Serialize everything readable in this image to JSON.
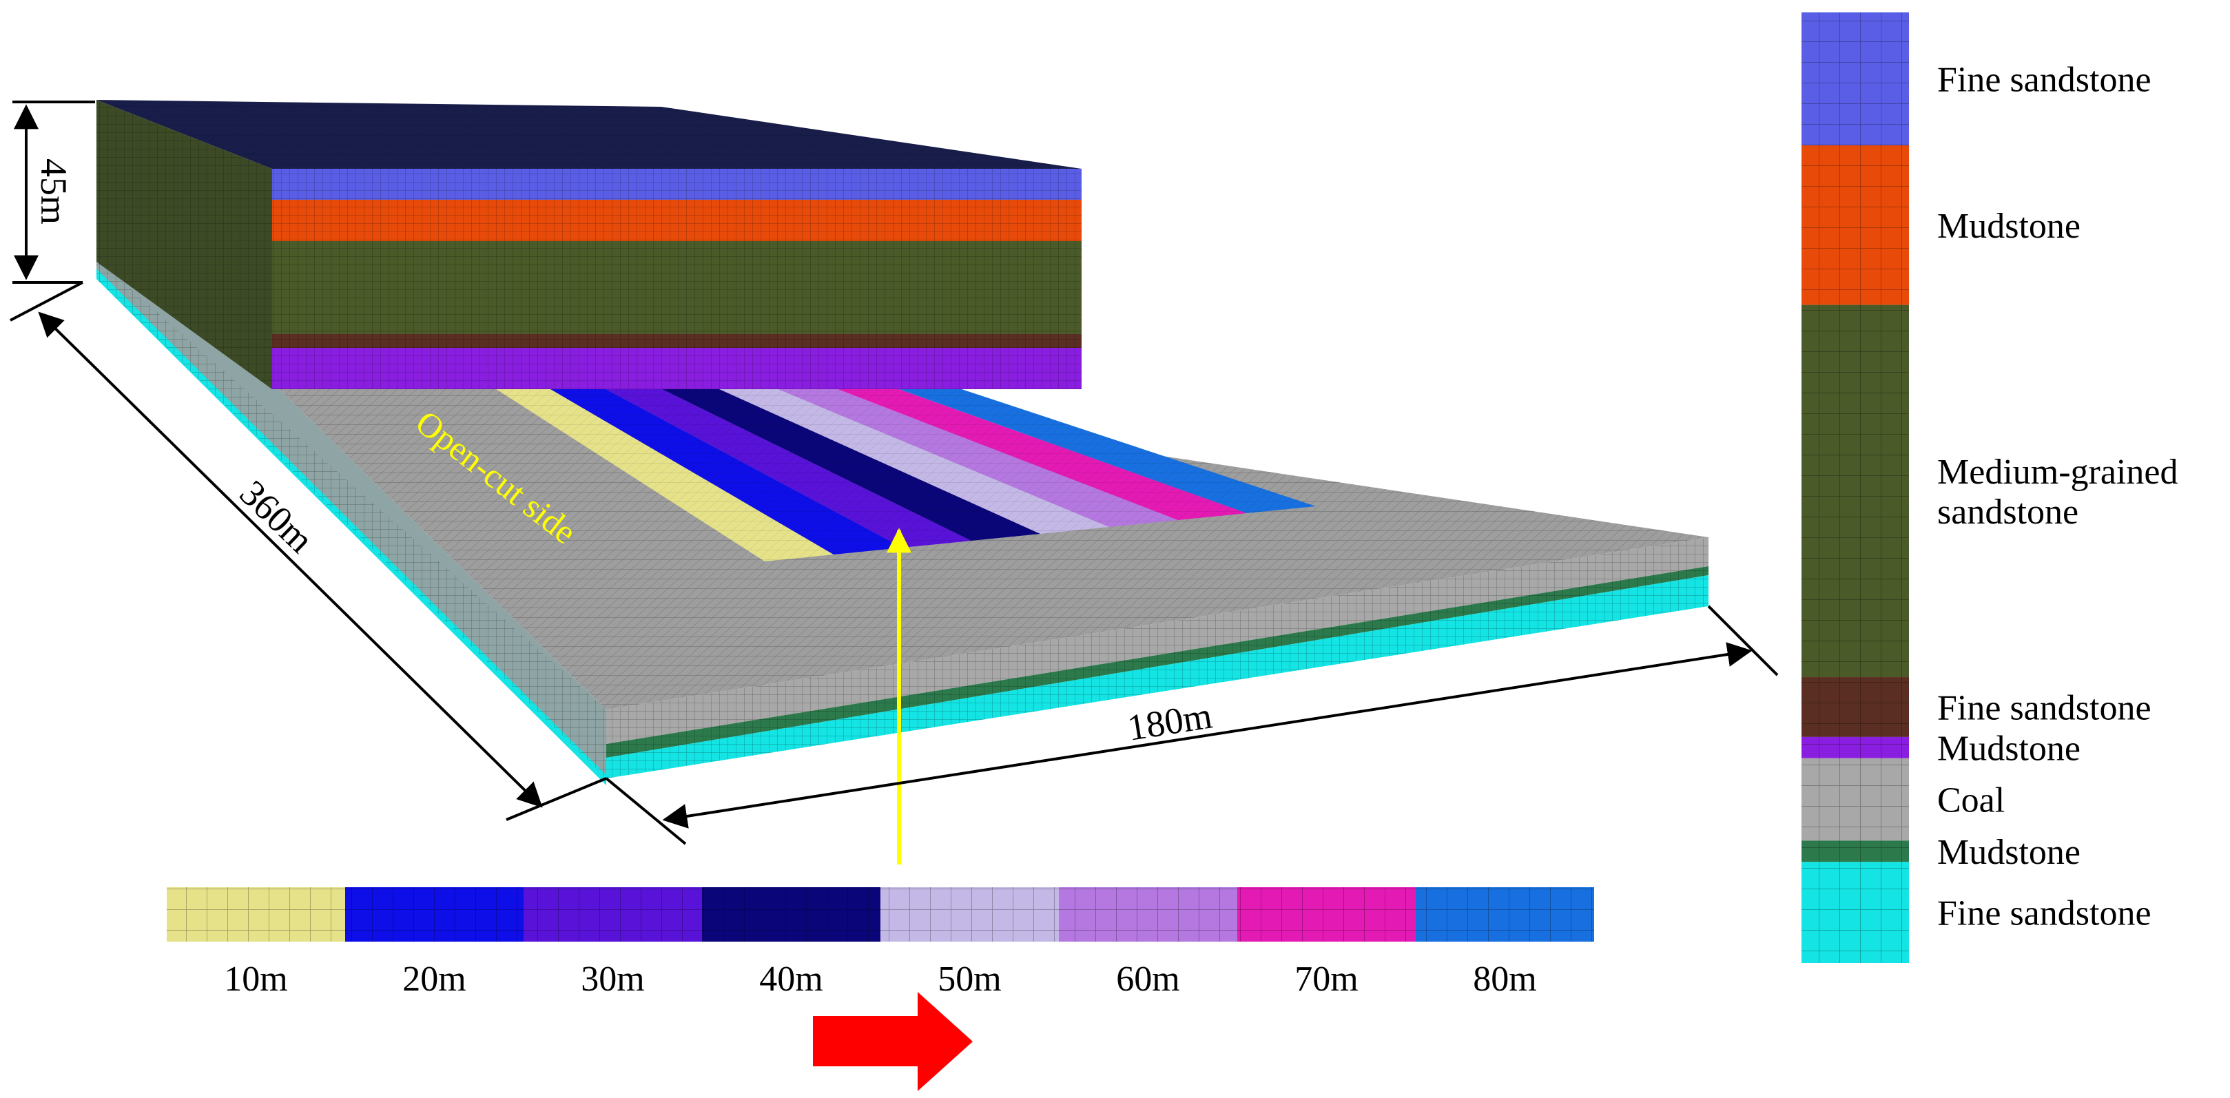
{
  "model": {
    "dims": {
      "height": "45m",
      "length": "360m",
      "width": "180m"
    },
    "open_cut_label": "Open-cut side",
    "upper_block_layers": [
      {
        "color": "#5a5ee6"
      },
      {
        "color": "#e84a0a"
      },
      {
        "color": "#4a5a28"
      },
      {
        "color": "#5a2e22"
      },
      {
        "color": "#8a1ee0"
      }
    ],
    "lower_block_layers": [
      {
        "color": "#a8a8a8"
      },
      {
        "color": "#2c7a4c"
      },
      {
        "color": "#14e4e4"
      }
    ],
    "arrow_color": "#ffff00",
    "label_color": "#ffff00"
  },
  "strip_legend": {
    "items": [
      {
        "label": "10m",
        "color": "#e6e28a"
      },
      {
        "label": "20m",
        "color": "#0e0ee8"
      },
      {
        "label": "30m",
        "color": "#5812d8"
      },
      {
        "label": "40m",
        "color": "#0a067a"
      },
      {
        "label": "50m",
        "color": "#c4b8e6"
      },
      {
        "label": "60m",
        "color": "#b478e0"
      },
      {
        "label": "70m",
        "color": "#e41ab4"
      },
      {
        "label": "80m",
        "color": "#1870e0"
      }
    ],
    "direction_arrow_color": "#ff0000"
  },
  "layer_legend": {
    "items": [
      {
        "label": [
          "Fine sandstone"
        ],
        "color": "#5a5ee6",
        "weight": 1.0
      },
      {
        "label": [
          "Mudstone"
        ],
        "color": "#e84a0a",
        "weight": 1.2
      },
      {
        "label": [
          "Medium-grained",
          "sandstone"
        ],
        "color": "#4a5a28",
        "weight": 2.8
      },
      {
        "label": [
          "Fine sandstone"
        ],
        "color": "#5a2e22",
        "weight": 0.45
      },
      {
        "label": [
          "Mudstone"
        ],
        "color": "#8a1ee0",
        "weight": 0.16
      },
      {
        "label": [
          "Coal"
        ],
        "color": "#a8a8a8",
        "weight": 0.62
      },
      {
        "label": [
          "Mudstone"
        ],
        "color": "#2c7a4c",
        "weight": 0.16
      },
      {
        "label": [
          "Fine sandstone"
        ],
        "color": "#14e4e4",
        "weight": 0.76
      }
    ]
  }
}
